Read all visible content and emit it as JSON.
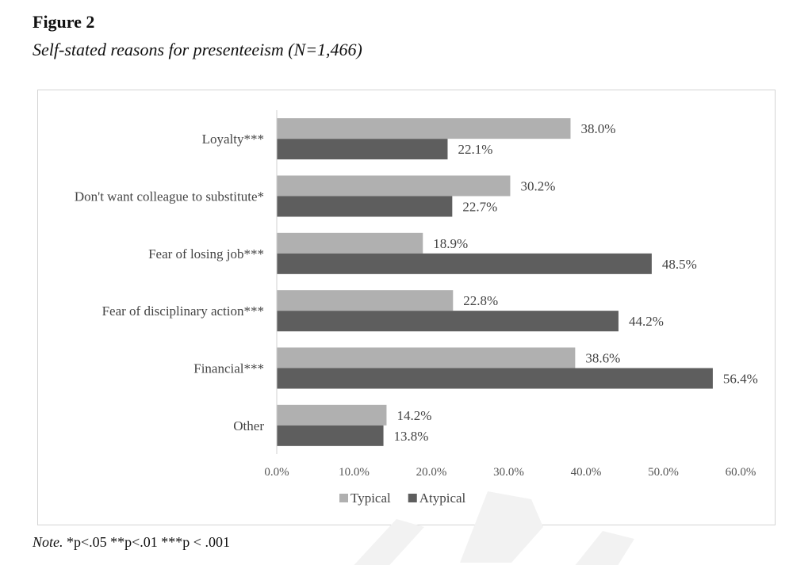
{
  "figure": {
    "label": "Figure 2",
    "caption": "Self-stated reasons for presenteeism (N=1,466)"
  },
  "note": {
    "label": "Note.",
    "text": " *p<.05 **p<.01 ***p < .001"
  },
  "chart_data": {
    "type": "bar",
    "orientation": "horizontal",
    "title": "",
    "xlabel": "",
    "ylabel": "",
    "categories": [
      "Loyalty***",
      "Don't want colleague to substitute*",
      "Fear of losing job***",
      "Fear of disciplinary action***",
      "Financial***",
      "Other"
    ],
    "series": [
      {
        "name": "Typical",
        "color": "#b0b0b0",
        "values": [
          38.0,
          30.2,
          18.9,
          22.8,
          38.6,
          14.2
        ],
        "labels": [
          "38.0%",
          "30.2%",
          "18.9%",
          "22.8%",
          "38.6%",
          "14.2%"
        ]
      },
      {
        "name": "Atypical",
        "color": "#5e5e5e",
        "values": [
          22.1,
          22.7,
          48.5,
          44.2,
          56.4,
          13.8
        ],
        "labels": [
          "22.1%",
          "22.7%",
          "48.5%",
          "44.2%",
          "56.4%",
          "13.8%"
        ]
      }
    ],
    "xlim": [
      0,
      60
    ],
    "x_ticks": [
      0,
      10,
      20,
      30,
      40,
      50,
      60
    ],
    "x_tick_labels": [
      "0.0%",
      "10.0%",
      "20.0%",
      "30.0%",
      "40.0%",
      "50.0%",
      "60.0%"
    ],
    "grid": false,
    "legend_position": "bottom"
  }
}
